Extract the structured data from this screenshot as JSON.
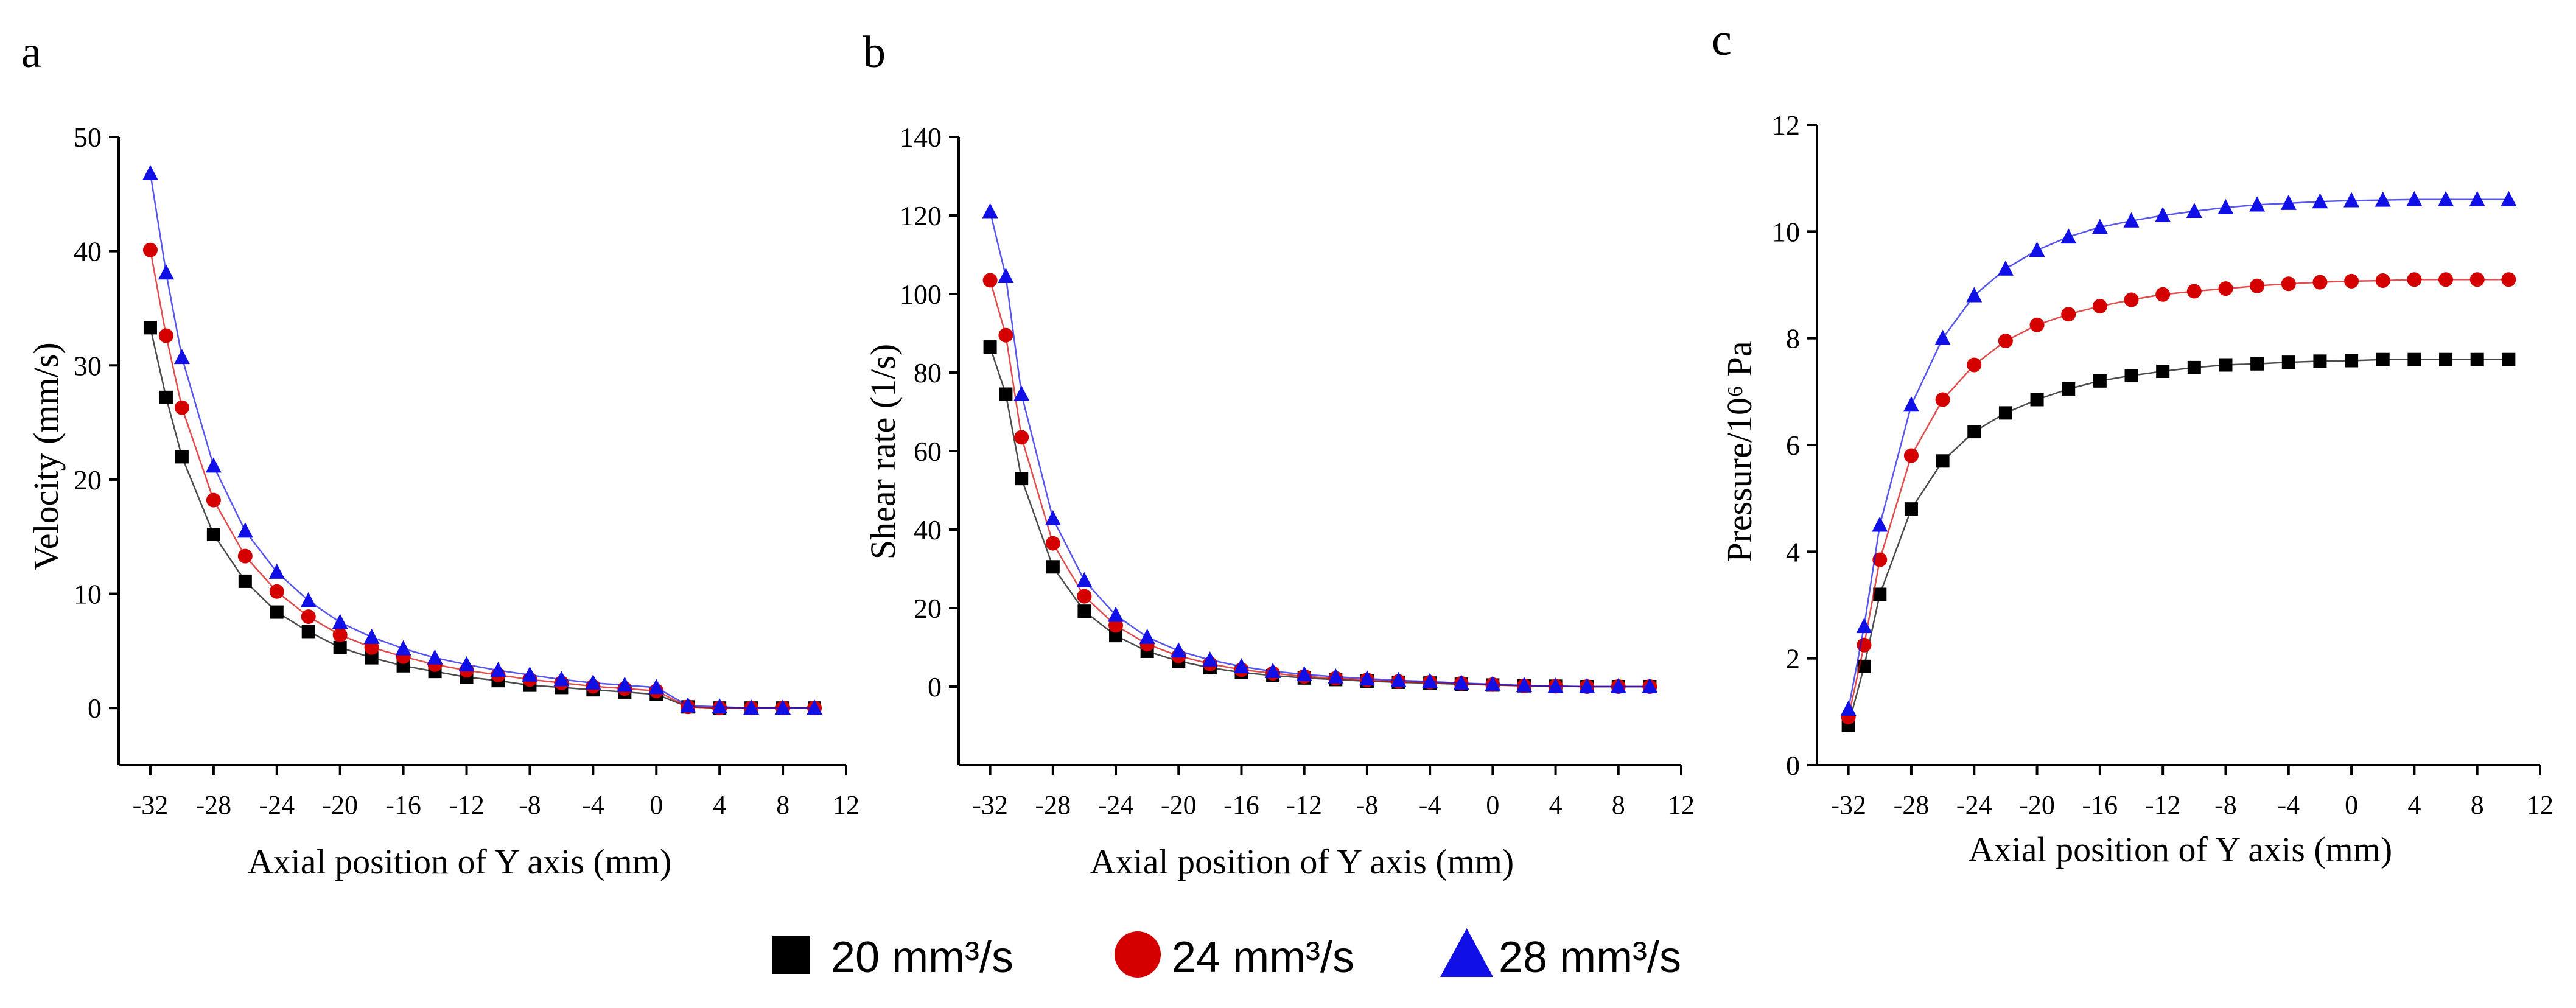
{
  "colors": {
    "s20": "#000000",
    "s24": "#d40000",
    "s28": "#1010e6",
    "axis": "#000000"
  },
  "legend": [
    {
      "label": "20 mm³/s",
      "marker": "square",
      "color": "#000000"
    },
    {
      "label": "24 mm³/s",
      "marker": "circle",
      "color": "#d40000"
    },
    {
      "label": "28 mm³/s",
      "marker": "triangle",
      "color": "#1010e6"
    }
  ],
  "chart_data": [
    {
      "type": "line",
      "panel_label": "a",
      "xlabel": "Axial position of Y axis (mm)",
      "ylabel": "Velocity (mm/s)",
      "xlim": [
        -34,
        12
      ],
      "ylim": [
        -5,
        50
      ],
      "xticks": [
        -32,
        -28,
        -24,
        -20,
        -16,
        -12,
        -8,
        -4,
        0,
        4,
        8,
        12
      ],
      "yticks": [
        0,
        10,
        20,
        30,
        40,
        50
      ],
      "x": [
        -32,
        -31,
        -30,
        -28,
        -26,
        -24,
        -22,
        -20,
        -18,
        -16,
        -14,
        -12,
        -10,
        -8,
        -6,
        -4,
        -2,
        0,
        2,
        4,
        6,
        8,
        10
      ],
      "series": [
        {
          "name": "20 mm³/s",
          "marker": "square",
          "values": [
            33.3,
            27.2,
            22.0,
            15.2,
            11.1,
            8.4,
            6.7,
            5.3,
            4.4,
            3.7,
            3.2,
            2.7,
            2.4,
            2.0,
            1.8,
            1.6,
            1.4,
            1.2,
            0.1,
            0.0,
            0.0,
            0.0,
            0.0
          ]
        },
        {
          "name": "24 mm³/s",
          "marker": "circle",
          "values": [
            40.1,
            32.6,
            26.3,
            18.2,
            13.3,
            10.2,
            8.0,
            6.4,
            5.3,
            4.5,
            3.8,
            3.3,
            2.9,
            2.5,
            2.2,
            1.9,
            1.7,
            1.5,
            0.1,
            0.0,
            0.0,
            0.0,
            0.0
          ]
        },
        {
          "name": "28 mm³/s",
          "marker": "triangle",
          "values": [
            46.8,
            38.1,
            30.7,
            21.2,
            15.5,
            11.9,
            9.4,
            7.5,
            6.2,
            5.2,
            4.4,
            3.8,
            3.3,
            2.9,
            2.5,
            2.2,
            2.0,
            1.8,
            0.2,
            0.1,
            0.0,
            0.0,
            0.0
          ]
        }
      ]
    },
    {
      "type": "line",
      "panel_label": "b",
      "xlabel": "Axial position of Y axis (mm)",
      "ylabel": "Shear rate (1/s)",
      "xlim": [
        -34,
        12
      ],
      "ylim": [
        -20,
        140
      ],
      "xticks": [
        -32,
        -28,
        -24,
        -20,
        -16,
        -12,
        -8,
        -4,
        0,
        4,
        8,
        12
      ],
      "yticks": [
        0,
        20,
        40,
        60,
        80,
        100,
        120,
        140
      ],
      "x": [
        -32,
        -31,
        -30,
        -28,
        -26,
        -24,
        -22,
        -20,
        -18,
        -16,
        -14,
        -12,
        -10,
        -8,
        -6,
        -4,
        -2,
        0,
        2,
        4,
        6,
        8,
        10
      ],
      "series": [
        {
          "name": "20 mm³/s",
          "marker": "square",
          "values": [
            86.5,
            74.5,
            53.0,
            30.5,
            19.2,
            13.0,
            9.0,
            6.5,
            4.8,
            3.6,
            2.8,
            2.2,
            1.8,
            1.4,
            1.1,
            0.9,
            0.6,
            0.4,
            0.2,
            0.1,
            0.0,
            0.0,
            0.0
          ]
        },
        {
          "name": "24 mm³/s",
          "marker": "circle",
          "values": [
            103.5,
            89.5,
            63.5,
            36.5,
            23.0,
            15.6,
            10.8,
            7.8,
            5.8,
            4.3,
            3.4,
            2.6,
            2.1,
            1.7,
            1.3,
            1.1,
            0.8,
            0.5,
            0.2,
            0.1,
            0.0,
            0.0,
            0.0
          ]
        },
        {
          "name": "28 mm³/s",
          "marker": "triangle",
          "values": [
            121.0,
            104.5,
            74.5,
            42.8,
            27.0,
            18.2,
            12.6,
            9.1,
            6.8,
            5.1,
            3.9,
            3.1,
            2.5,
            2.0,
            1.6,
            1.3,
            0.9,
            0.6,
            0.3,
            0.1,
            0.0,
            0.0,
            0.0
          ]
        }
      ]
    },
    {
      "type": "line",
      "panel_label": "c",
      "xlabel": "Axial position of Y axis (mm)",
      "ylabel": "Pressure/10⁶ Pa",
      "xlim": [
        -34,
        12
      ],
      "ylim": [
        0,
        12
      ],
      "xticks": [
        -32,
        -28,
        -24,
        -20,
        -16,
        -12,
        -8,
        -4,
        0,
        4,
        8,
        12
      ],
      "yticks": [
        0,
        2,
        4,
        6,
        8,
        10,
        12
      ],
      "x": [
        -32,
        -31,
        -30,
        -28,
        -26,
        -24,
        -22,
        -20,
        -18,
        -16,
        -14,
        -12,
        -10,
        -8,
        -6,
        -4,
        -2,
        0,
        2,
        4,
        6,
        8,
        10
      ],
      "series": [
        {
          "name": "20 mm³/s",
          "marker": "square",
          "values": [
            0.75,
            1.85,
            3.2,
            4.8,
            5.7,
            6.25,
            6.6,
            6.85,
            7.05,
            7.2,
            7.3,
            7.38,
            7.45,
            7.5,
            7.52,
            7.55,
            7.57,
            7.58,
            7.6,
            7.6,
            7.6,
            7.6,
            7.6
          ]
        },
        {
          "name": "24 mm³/s",
          "marker": "circle",
          "values": [
            0.9,
            2.25,
            3.85,
            5.8,
            6.85,
            7.5,
            7.95,
            8.25,
            8.45,
            8.6,
            8.72,
            8.82,
            8.88,
            8.93,
            8.98,
            9.02,
            9.05,
            9.07,
            9.08,
            9.1,
            9.1,
            9.1,
            9.1
          ]
        },
        {
          "name": "28 mm³/s",
          "marker": "triangle",
          "values": [
            1.05,
            2.6,
            4.5,
            6.75,
            8.0,
            8.8,
            9.3,
            9.65,
            9.9,
            10.08,
            10.2,
            10.3,
            10.38,
            10.45,
            10.5,
            10.53,
            10.56,
            10.58,
            10.59,
            10.6,
            10.6,
            10.6,
            10.6
          ]
        }
      ]
    }
  ]
}
